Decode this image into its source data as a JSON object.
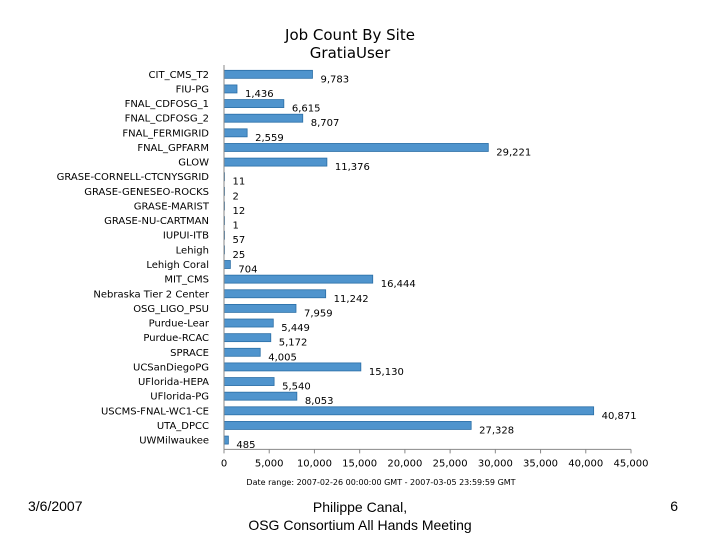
{
  "footer": {
    "date": "3/6/2007",
    "author_line1": "Philippe Canal,",
    "author_line2": "OSG Consortium All Hands Meeting",
    "page": "6"
  },
  "colors": {
    "bar": "#4f94cd",
    "bar_edge": "#2a6ea6",
    "axis": "#888888"
  },
  "chart_data": {
    "type": "bar",
    "orientation": "horizontal",
    "title": "Job Count By Site",
    "subtitle": "GratiaUser",
    "note": "Date range: 2007-02-26 00:00:00 GMT - 2007-03-05 23:59:59 GMT",
    "xlabel": "",
    "ylabel": "",
    "xlim": [
      0,
      45000
    ],
    "xticks": [
      0,
      5000,
      10000,
      15000,
      20000,
      25000,
      30000,
      35000,
      40000,
      45000
    ],
    "xtick_labels": [
      "0",
      "5,000",
      "10,000",
      "15,000",
      "20,000",
      "25,000",
      "30,000",
      "35,000",
      "40,000",
      "45,000"
    ],
    "categories": [
      "CIT_CMS_T2",
      "FIU-PG",
      "FNAL_CDFOSG_1",
      "FNAL_CDFOSG_2",
      "FNAL_FERMIGRID",
      "FNAL_GPFARM",
      "GLOW",
      "GRASE-CORNELL-CTCNYSGRID",
      "GRASE-GENESEO-ROCKS",
      "GRASE-MARIST",
      "GRASE-NU-CARTMAN",
      "IUPUI-ITB",
      "Lehigh",
      "Lehigh Coral",
      "MIT_CMS",
      "Nebraska Tier 2 Center",
      "OSG_LIGO_PSU",
      "Purdue-Lear",
      "Purdue-RCAC",
      "SPRACE",
      "UCSanDiegoPG",
      "UFlorida-HEPA",
      "UFlorida-PG",
      "USCMS-FNAL-WC1-CE",
      "UTA_DPCC",
      "UWMilwaukee"
    ],
    "values": [
      9783,
      1436,
      6615,
      8707,
      2559,
      29221,
      11376,
      11,
      2,
      12,
      1,
      57,
      25,
      704,
      16444,
      11242,
      7959,
      5449,
      5172,
      4005,
      15130,
      5540,
      8053,
      40871,
      27328,
      485
    ],
    "value_labels": [
      "9,783",
      "1,436",
      "6,615",
      "8,707",
      "2,559",
      "29,221",
      "11,376",
      "11",
      "2",
      "12",
      "1",
      "57",
      "25",
      "704",
      "16,444",
      "11,242",
      "7,959",
      "5,449",
      "5,172",
      "4,005",
      "15,130",
      "5,540",
      "8,053",
      "40,871",
      "27,328",
      "485"
    ]
  }
}
